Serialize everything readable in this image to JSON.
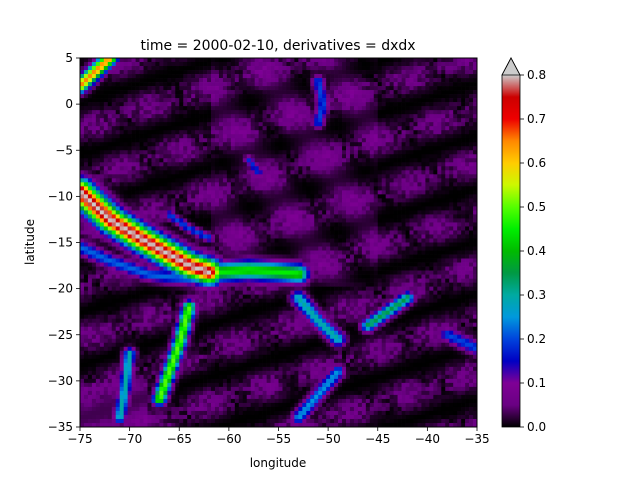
{
  "chart_data": {
    "type": "heatmap",
    "title": "time = 2000-02-10, derivatives = dxdx",
    "xlabel": "longitude",
    "ylabel": "latitude",
    "xlim": [
      -75,
      -35
    ],
    "ylim": [
      -35,
      5
    ],
    "xticks": [
      -75,
      -70,
      -65,
      -60,
      -55,
      -50,
      -45,
      -40,
      -35
    ],
    "yticks": [
      5,
      0,
      -5,
      -10,
      -15,
      -20,
      -25,
      -30,
      -35
    ],
    "colorbar": {
      "vmin": 0.0,
      "vmax": 0.8,
      "extend": "max",
      "ticks": [
        "0.0",
        "0.1",
        "0.2",
        "0.3",
        "0.4",
        "0.5",
        "0.6",
        "0.7",
        "0.8"
      ],
      "colormap": "nipy_spectral",
      "stops": [
        {
          "v": 0.0,
          "color": "#000000"
        },
        {
          "v": 0.05,
          "color": "#6a0083"
        },
        {
          "v": 0.1,
          "color": "#7f0095"
        },
        {
          "v": 0.15,
          "color": "#0000c3"
        },
        {
          "v": 0.2,
          "color": "#0044dd"
        },
        {
          "v": 0.25,
          "color": "#0099dd"
        },
        {
          "v": 0.3,
          "color": "#00aaa1"
        },
        {
          "v": 0.35,
          "color": "#009944"
        },
        {
          "v": 0.4,
          "color": "#00bb00"
        },
        {
          "v": 0.45,
          "color": "#00ee00"
        },
        {
          "v": 0.5,
          "color": "#55ff00"
        },
        {
          "v": 0.55,
          "color": "#ccf800"
        },
        {
          "v": 0.6,
          "color": "#ffcc00"
        },
        {
          "v": 0.65,
          "color": "#ff8800"
        },
        {
          "v": 0.7,
          "color": "#ee0000"
        },
        {
          "v": 0.75,
          "color": "#cc0000"
        },
        {
          "v": 0.8,
          "color": "#cccccc"
        }
      ]
    },
    "features": [
      {
        "kind": "ridge",
        "points": [
          [
            -75,
            -9.5
          ],
          [
            -72,
            -12.5
          ],
          [
            -69,
            -14.5
          ],
          [
            -66,
            -16.3
          ],
          [
            -64,
            -17.5
          ],
          [
            -62,
            -18.2
          ]
        ],
        "value": 0.8,
        "width": 0.9
      },
      {
        "kind": "ridge",
        "points": [
          [
            -62,
            -18.3
          ],
          [
            -58,
            -18.0
          ],
          [
            -55,
            -18.2
          ],
          [
            -53,
            -18.4
          ]
        ],
        "value": 0.45,
        "width": 0.7
      },
      {
        "kind": "ridge",
        "points": [
          [
            -75,
            -15.5
          ],
          [
            -72,
            -17.0
          ],
          [
            -68,
            -18.5
          ],
          [
            -64,
            -19.0
          ]
        ],
        "value": 0.22,
        "width": 0.5
      },
      {
        "kind": "ridge",
        "points": [
          [
            -75,
            2.0
          ],
          [
            -73,
            4.0
          ],
          [
            -72,
            5.0
          ]
        ],
        "value": 0.65,
        "width": 0.5
      },
      {
        "kind": "ridge",
        "points": [
          [
            -70,
            -27.0
          ],
          [
            -70.5,
            -31.0
          ],
          [
            -71,
            -34.0
          ]
        ],
        "value": 0.3,
        "width": 0.4
      },
      {
        "kind": "ridge",
        "points": [
          [
            -64,
            -22.0
          ],
          [
            -65,
            -26.0
          ],
          [
            -66,
            -29.0
          ],
          [
            -67,
            -32.0
          ]
        ],
        "value": 0.5,
        "width": 0.45
      },
      {
        "kind": "ridge",
        "points": [
          [
            -53,
            -21.0
          ],
          [
            -51,
            -23.5
          ],
          [
            -49,
            -25.5
          ]
        ],
        "value": 0.3,
        "width": 0.5
      },
      {
        "kind": "ridge",
        "points": [
          [
            -42,
            -21.0
          ],
          [
            -44,
            -22.5
          ],
          [
            -46,
            -24.0
          ]
        ],
        "value": 0.35,
        "width": 0.45
      },
      {
        "kind": "ridge",
        "points": [
          [
            -49,
            -29.0
          ],
          [
            -51,
            -31.5
          ],
          [
            -53,
            -34.0
          ]
        ],
        "value": 0.25,
        "width": 0.45
      },
      {
        "kind": "ridge",
        "points": [
          [
            -51,
            2.5
          ],
          [
            -50.5,
            0.0
          ],
          [
            -51,
            -2.0
          ]
        ],
        "value": 0.2,
        "width": 0.4
      },
      {
        "kind": "ridge",
        "points": [
          [
            -38,
            -25.0
          ],
          [
            -36,
            -26.0
          ],
          [
            -35,
            -26.5
          ]
        ],
        "value": 0.2,
        "width": 0.5
      },
      {
        "kind": "ridge",
        "points": [
          [
            -66,
            -12.0
          ],
          [
            -64,
            -13.5
          ],
          [
            -62,
            -14.5
          ]
        ],
        "value": 0.2,
        "width": 0.3
      },
      {
        "kind": "ridge",
        "points": [
          [
            -58,
            -6.0
          ],
          [
            -57,
            -7.5
          ]
        ],
        "value": 0.18,
        "width": 0.3
      }
    ]
  }
}
